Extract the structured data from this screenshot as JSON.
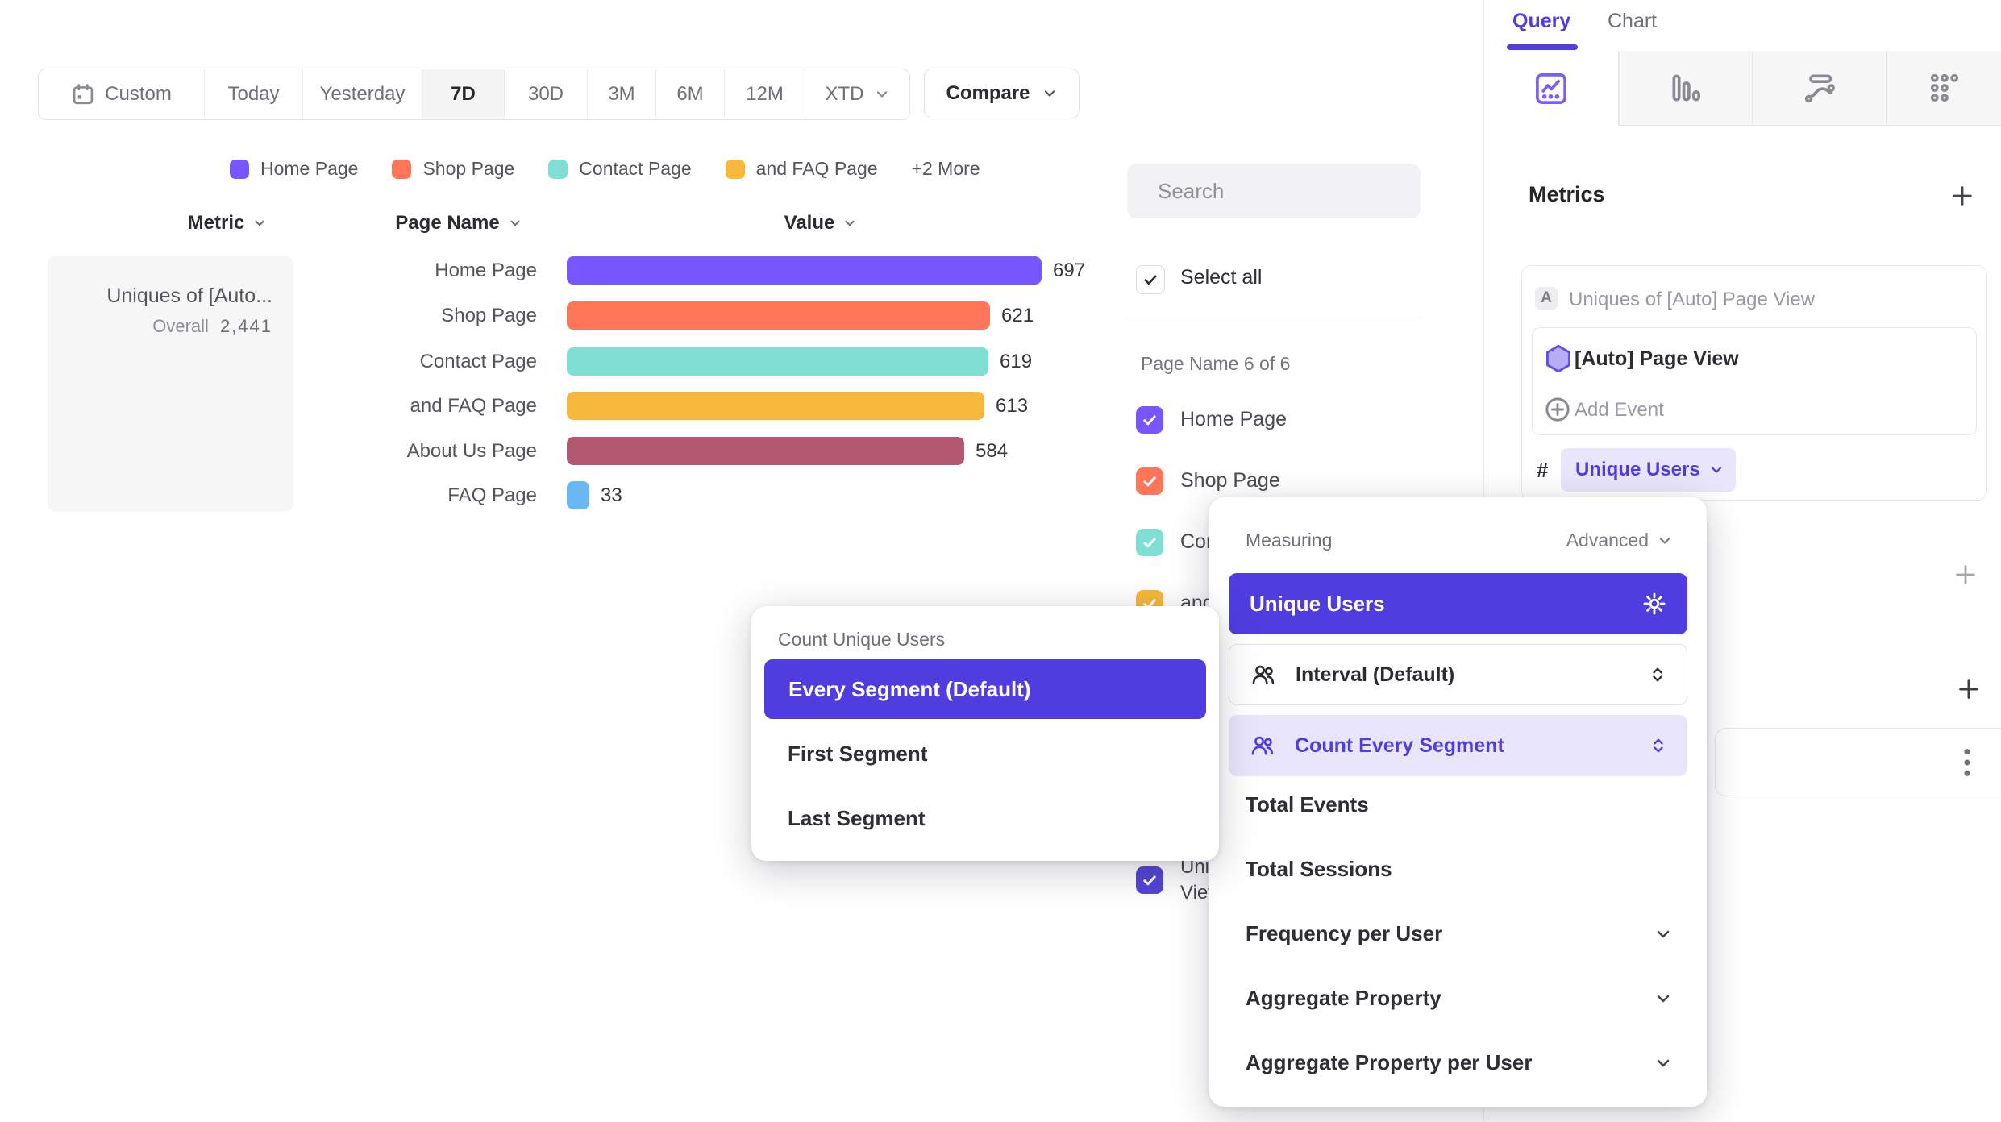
{
  "colors": {
    "accent": "#4f3ddf",
    "accent_soft": "#e9e6fb",
    "bar_purple": "#7856ff",
    "coral": "#ff7557",
    "teal": "#7fdfd4",
    "amber": "#f6b83c",
    "maroon": "#b25971",
    "light_blue": "#69b8f3"
  },
  "toolbar": {
    "date_ranges": [
      "Custom",
      "Today",
      "Yesterday",
      "7D",
      "30D",
      "3M",
      "6M",
      "12M",
      "XTD"
    ],
    "selected_range": "7D",
    "compare_label": "Compare",
    "chart_type_label": "Bar"
  },
  "chart_data": {
    "type": "bar",
    "orientation": "horizontal",
    "headers": {
      "metric": "Metric",
      "page_name": "Page Name",
      "value": "Value"
    },
    "metric": {
      "title_truncated": "Uniques of [Auto...",
      "overall_label": "Overall",
      "overall_value": "2,441"
    },
    "categories": [
      "Home Page",
      "Shop Page",
      "Contact Page",
      "and FAQ Page",
      "About Us Page",
      "FAQ Page"
    ],
    "values": [
      697,
      621,
      619,
      613,
      584,
      33
    ],
    "rows": [
      {
        "label": "Home Page",
        "value": 697,
        "color": "#7856ff"
      },
      {
        "label": "Shop Page",
        "value": 621,
        "color": "#ff7557"
      },
      {
        "label": "Contact Page",
        "value": 619,
        "color": "#7fdfd4"
      },
      {
        "label": "and FAQ Page",
        "value": 613,
        "color": "#f6b83c"
      },
      {
        "label": "About Us Page",
        "value": 584,
        "color": "#b25971"
      },
      {
        "label": "FAQ Page",
        "value": 33,
        "color": "#69b8f3"
      }
    ],
    "legend": {
      "items": [
        {
          "label": "Home Page",
          "color": "#7856ff"
        },
        {
          "label": "Shop Page",
          "color": "#ff7557"
        },
        {
          "label": "Contact Page",
          "color": "#7fdfd4"
        },
        {
          "label": "and FAQ Page",
          "color": "#f6b83c"
        }
      ],
      "more_label": "+2 More"
    }
  },
  "filter_panel": {
    "search_placeholder": "Search",
    "select_all_label": "Select all",
    "group_label": "Page Name 6 of 6",
    "items": [
      {
        "label": "Home Page",
        "color": "#7856ff",
        "checked": true
      },
      {
        "label": "Shop Page",
        "color": "#ff7557",
        "checked": true
      },
      {
        "label": "Contact Page",
        "color": "#7fdfd4",
        "checked": true
      },
      {
        "label": "and FAQ Page",
        "color": "#f6b83c",
        "checked": true
      },
      {
        "label": "About Us Page",
        "color": "#b25971",
        "checked": true
      },
      {
        "label": "FAQ Page",
        "color": "#69b8f3",
        "checked": true
      }
    ],
    "metric_item": {
      "label": "Uniques of [Auto] Page View",
      "color": "#5246d6",
      "checked": true
    }
  },
  "query_panel": {
    "tabs": [
      {
        "label": "Query"
      },
      {
        "label": "Chart"
      }
    ],
    "active_tab": "Query",
    "metrics_heading": "Metrics",
    "metric_row": {
      "badge": "A",
      "title": "Uniques of [Auto] Page View"
    },
    "event_row": {
      "label": "[Auto] Page View"
    },
    "add_event_label": "Add Event",
    "hash_label": "#",
    "measure_pill_label": "Unique Users"
  },
  "measuring_popover": {
    "title": "Measuring",
    "advanced_label": "Advanced",
    "selected_option": "Unique Users",
    "interval_label": "Interval (Default)",
    "count_segment_label": "Count Every Segment",
    "simple_options": [
      "Total Events",
      "Total Sessions"
    ],
    "expandable_options": [
      "Frequency per User",
      "Aggregate Property",
      "Aggregate Property per User"
    ]
  },
  "count_popover": {
    "title": "Count Unique Users",
    "selected_option": "Every Segment (Default)",
    "options": [
      "First Segment",
      "Last Segment"
    ]
  }
}
